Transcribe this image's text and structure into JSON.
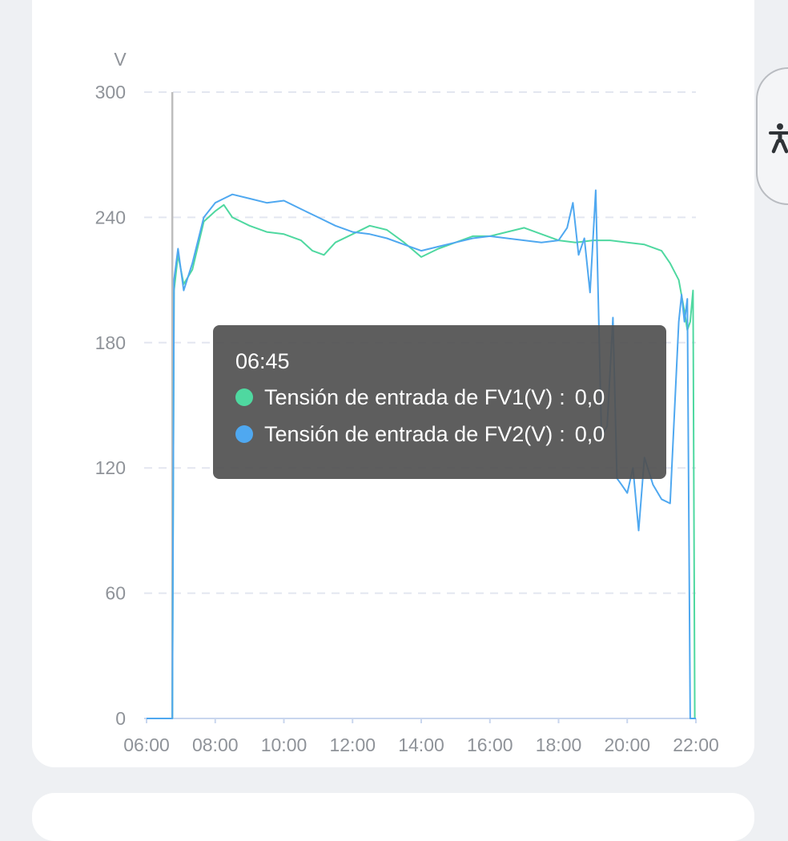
{
  "chart_data": {
    "type": "line",
    "ylabel": "V",
    "ylim": [
      0,
      300
    ],
    "yticks": [
      "0",
      "60",
      "120",
      "180",
      "240",
      "300"
    ],
    "xticks": [
      "06:00",
      "08:00",
      "10:00",
      "12:00",
      "14:00",
      "16:00",
      "18:00",
      "20:00",
      "22:00"
    ],
    "grid": true,
    "cursor_time": "06:45",
    "series": [
      {
        "name": "Tensión de entrada de FV1(V)",
        "color": "#4fd8a0",
        "points": [
          [
            "06:00",
            0
          ],
          [
            "06:45",
            0
          ],
          [
            "06:48",
            205
          ],
          [
            "06:55",
            222
          ],
          [
            "07:05",
            208
          ],
          [
            "07:20",
            215
          ],
          [
            "07:40",
            238
          ],
          [
            "08:00",
            243
          ],
          [
            "08:15",
            246
          ],
          [
            "08:30",
            240
          ],
          [
            "09:00",
            236
          ],
          [
            "09:30",
            233
          ],
          [
            "10:00",
            232
          ],
          [
            "10:30",
            229
          ],
          [
            "10:50",
            224
          ],
          [
            "11:10",
            222
          ],
          [
            "11:30",
            228
          ],
          [
            "12:00",
            232
          ],
          [
            "12:30",
            236
          ],
          [
            "13:00",
            234
          ],
          [
            "13:30",
            228
          ],
          [
            "14:00",
            221
          ],
          [
            "14:30",
            225
          ],
          [
            "15:00",
            228
          ],
          [
            "15:30",
            231
          ],
          [
            "16:00",
            231
          ],
          [
            "16:30",
            233
          ],
          [
            "17:00",
            235
          ],
          [
            "17:30",
            232
          ],
          [
            "18:00",
            229
          ],
          [
            "18:30",
            228
          ],
          [
            "19:00",
            229
          ],
          [
            "19:30",
            229
          ],
          [
            "20:00",
            228
          ],
          [
            "20:30",
            227
          ],
          [
            "21:00",
            224
          ],
          [
            "21:15",
            218
          ],
          [
            "21:30",
            210
          ],
          [
            "21:40",
            195
          ],
          [
            "21:45",
            186
          ],
          [
            "21:50",
            190
          ],
          [
            "21:55",
            205
          ],
          [
            "21:58",
            0
          ],
          [
            "22:00",
            0
          ]
        ]
      },
      {
        "name": "Tensión de entrada de FV2(V)",
        "color": "#4fa8f0",
        "points": [
          [
            "06:00",
            0
          ],
          [
            "06:45",
            0
          ],
          [
            "06:48",
            210
          ],
          [
            "06:55",
            225
          ],
          [
            "07:05",
            205
          ],
          [
            "07:20",
            218
          ],
          [
            "07:40",
            240
          ],
          [
            "08:00",
            247
          ],
          [
            "08:15",
            249
          ],
          [
            "08:30",
            251
          ],
          [
            "09:00",
            249
          ],
          [
            "09:30",
            247
          ],
          [
            "10:00",
            248
          ],
          [
            "10:30",
            244
          ],
          [
            "11:00",
            240
          ],
          [
            "11:30",
            236
          ],
          [
            "12:00",
            233
          ],
          [
            "12:30",
            232
          ],
          [
            "13:00",
            230
          ],
          [
            "13:30",
            227
          ],
          [
            "14:00",
            224
          ],
          [
            "14:30",
            226
          ],
          [
            "15:00",
            228
          ],
          [
            "15:30",
            230
          ],
          [
            "16:00",
            231
          ],
          [
            "16:30",
            230
          ],
          [
            "17:00",
            229
          ],
          [
            "17:30",
            228
          ],
          [
            "18:00",
            229
          ],
          [
            "18:15",
            235
          ],
          [
            "18:25",
            247
          ],
          [
            "18:35",
            222
          ],
          [
            "18:45",
            230
          ],
          [
            "18:55",
            204
          ],
          [
            "19:05",
            253
          ],
          [
            "19:15",
            135
          ],
          [
            "19:25",
            140
          ],
          [
            "19:35",
            192
          ],
          [
            "19:42",
            115
          ],
          [
            "19:50",
            112
          ],
          [
            "20:00",
            108
          ],
          [
            "20:10",
            120
          ],
          [
            "20:20",
            90
          ],
          [
            "20:30",
            125
          ],
          [
            "20:45",
            112
          ],
          [
            "21:00",
            105
          ],
          [
            "21:15",
            103
          ],
          [
            "21:30",
            190
          ],
          [
            "21:35",
            203
          ],
          [
            "21:40",
            190
          ],
          [
            "21:45",
            201
          ],
          [
            "21:50",
            0
          ],
          [
            "22:00",
            0
          ]
        ]
      }
    ]
  },
  "tooltip": {
    "time": "06:45",
    "rows": [
      {
        "label": "Tensión de entrada de FV1(V)",
        "sep": ":",
        "value": "0,0",
        "color": "#4fd8a0"
      },
      {
        "label": "Tensión de entrada de FV2(V)",
        "sep": ":",
        "value": "0,0",
        "color": "#4fa8f0"
      }
    ]
  },
  "accessibility": {
    "icon": "accessibility-icon"
  }
}
